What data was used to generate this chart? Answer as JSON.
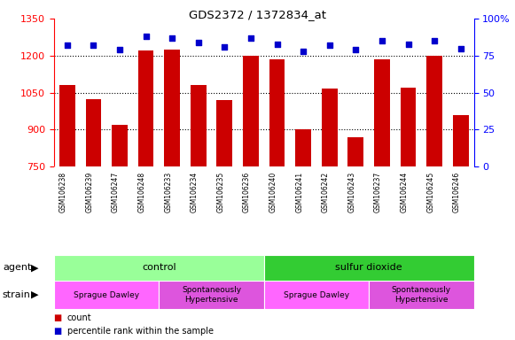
{
  "title": "GDS2372 / 1372834_at",
  "categories": [
    "GSM106238",
    "GSM106239",
    "GSM106247",
    "GSM106248",
    "GSM106233",
    "GSM106234",
    "GSM106235",
    "GSM106236",
    "GSM106240",
    "GSM106241",
    "GSM106242",
    "GSM106243",
    "GSM106237",
    "GSM106244",
    "GSM106245",
    "GSM106246"
  ],
  "bar_values": [
    1080,
    1025,
    920,
    1220,
    1225,
    1080,
    1020,
    1200,
    1185,
    900,
    1068,
    868,
    1185,
    1070,
    1200,
    960
  ],
  "dot_values": [
    82,
    82,
    79,
    88,
    87,
    84,
    81,
    87,
    83,
    78,
    82,
    79,
    85,
    83,
    85,
    80
  ],
  "bar_color": "#CC0000",
  "dot_color": "#0000CC",
  "ylim_left": [
    750,
    1350
  ],
  "ylim_right": [
    0,
    100
  ],
  "yticks_left": [
    750,
    900,
    1050,
    1200,
    1350
  ],
  "yticks_right": [
    0,
    25,
    50,
    75,
    100
  ],
  "grid_values": [
    900,
    1050,
    1200
  ],
  "agent_groups": [
    {
      "label": "control",
      "start": 0,
      "end": 8,
      "color": "#99FF99"
    },
    {
      "label": "sulfur dioxide",
      "start": 8,
      "end": 16,
      "color": "#33CC33"
    }
  ],
  "strain_groups": [
    {
      "label": "Sprague Dawley",
      "start": 0,
      "end": 4,
      "color": "#FF66FF"
    },
    {
      "label": "Spontaneously\nHypertensive",
      "start": 4,
      "end": 8,
      "color": "#DD55DD"
    },
    {
      "label": "Sprague Dawley",
      "start": 8,
      "end": 12,
      "color": "#FF66FF"
    },
    {
      "label": "Spontaneously\nHypertensive",
      "start": 12,
      "end": 16,
      "color": "#DD55DD"
    }
  ],
  "legend_count_color": "#CC0000",
  "legend_dot_color": "#0000CC",
  "bg_color": "#FFFFFF",
  "tick_area_color": "#C8C8C8"
}
